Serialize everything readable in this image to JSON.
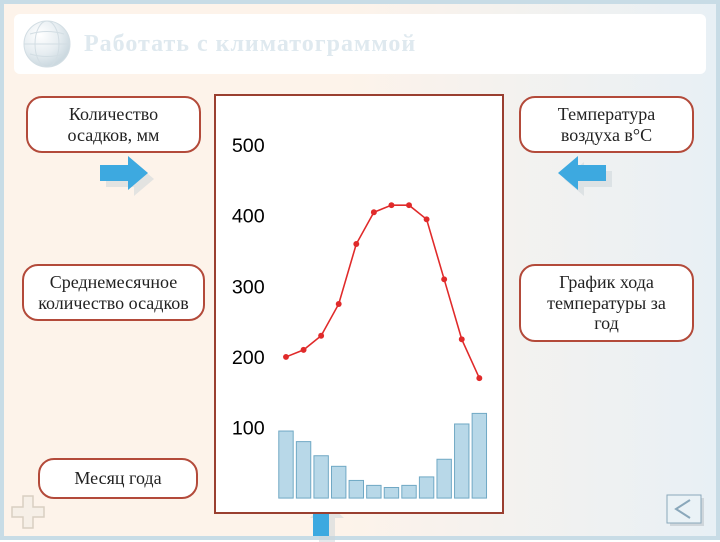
{
  "title": "Работать с климатограммой",
  "labels": {
    "precip_amount": "Количество осадков, мм",
    "temp_air": "Температура воздуха в°С",
    "avg_precip": "Среднемесячное количество осадков",
    "temp_graph": "График хода температуры за год",
    "month": "Месяц года"
  },
  "chart": {
    "type": "composite",
    "yticks": [
      500,
      400,
      300,
      200,
      100
    ],
    "ylim": [
      0,
      550
    ],
    "ytick_fontsize": 20,
    "ytick_color": "#000000",
    "background": "#ffffff",
    "border_color": "#9a3f30",
    "line": {
      "color": "#e02a2a",
      "width": 1.6,
      "marker": "circle",
      "marker_size": 3,
      "values": [
        200,
        210,
        230,
        275,
        360,
        405,
        415,
        415,
        395,
        310,
        225,
        170
      ]
    },
    "bars": {
      "color": "#b8d8e8",
      "border": "#6fa8c4",
      "values": [
        95,
        80,
        60,
        45,
        25,
        18,
        15,
        18,
        30,
        55,
        105,
        120
      ]
    }
  },
  "colors": {
    "slide_border": "#c8dce6",
    "pill_border": "#b34a3a",
    "arrow_fill": "#3da9e0",
    "arrow_shadow": "#cfd6db",
    "title_ghost": "#dfe9ef",
    "globe_light": "#f2f6f8",
    "globe_dark": "#d9e4ea",
    "nav_fill": "#dbe8f0",
    "nav_border": "#8aa8bb"
  }
}
